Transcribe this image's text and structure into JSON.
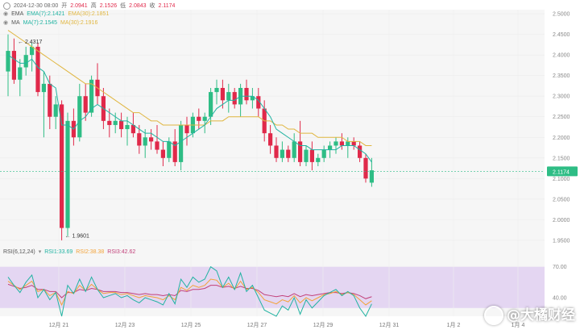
{
  "header": {
    "datetime": "2024-12-30 08:00",
    "open_label": "开",
    "open": "2.0941",
    "high_label": "高",
    "high": "2.1526",
    "low_label": "低",
    "low": "2.0843",
    "close_label": "收",
    "close": "2.1174"
  },
  "ema_legend": {
    "name": "EMA",
    "items": [
      "EMA(7):2.1421",
      "EMA(30):2.1851"
    ]
  },
  "ma_legend": {
    "name": "MA",
    "items": [
      "MA(7):2.1545",
      "MA(30):2.1916"
    ]
  },
  "rsi_legend": {
    "name": "RSI(6,12,24)",
    "items": [
      "RSI1:33.69",
      "RSI2:38.38",
      "RSI3:42.62"
    ]
  },
  "price_axis": [
    "2.5000",
    "2.4500",
    "2.4000",
    "2.3500",
    "2.3000",
    "2.2500",
    "2.2000",
    "2.1500",
    "2.1000",
    "2.0500",
    "2.0000",
    "1.9500"
  ],
  "current_price_tag": "2.1174",
  "rsi_axis": [
    "70.00",
    "40.00"
  ],
  "x_axis": [
    "12月 21",
    "12月 23",
    "12月 25",
    "12月 27",
    "12月 29",
    "12月 31",
    "1月 2",
    "1月 4"
  ],
  "annotations": {
    "high_marker": "2.4317",
    "low_marker": "1.9601"
  },
  "watermark": "@大橘财经",
  "colors": {
    "up": "#2ebd85",
    "down": "#e0294a",
    "ema7": "#21b3a2",
    "ema30": "#e0b640",
    "rsi1": "#21b3a2",
    "rsi2": "#f2a33a",
    "rsi3": "#c2417a",
    "rsi_band": "#e4d6f2",
    "price_tag": "#2ebd85"
  },
  "chart_data": {
    "type": "candlestick",
    "candles": [
      [
        2.36,
        2.45,
        2.3,
        2.41
      ],
      [
        2.41,
        2.44,
        2.33,
        2.34
      ],
      [
        2.34,
        2.39,
        2.3,
        2.37
      ],
      [
        2.37,
        2.42,
        2.35,
        2.4
      ],
      [
        2.4,
        2.43,
        2.36,
        2.42
      ],
      [
        2.42,
        2.43,
        2.3,
        2.31
      ],
      [
        2.31,
        2.36,
        2.2,
        2.33
      ],
      [
        2.33,
        2.35,
        2.22,
        2.25
      ],
      [
        2.25,
        2.3,
        2.22,
        2.28
      ],
      [
        2.28,
        2.29,
        1.95,
        1.98
      ],
      [
        1.98,
        2.26,
        1.96,
        2.24
      ],
      [
        2.24,
        2.27,
        2.18,
        2.2
      ],
      [
        2.2,
        2.33,
        2.19,
        2.3
      ],
      [
        2.3,
        2.33,
        2.24,
        2.26
      ],
      [
        2.26,
        2.35,
        2.25,
        2.34
      ],
      [
        2.34,
        2.38,
        2.28,
        2.3
      ],
      [
        2.3,
        2.32,
        2.22,
        2.24
      ],
      [
        2.24,
        2.27,
        2.2,
        2.23
      ],
      [
        2.23,
        2.26,
        2.21,
        2.24
      ],
      [
        2.24,
        2.26,
        2.2,
        2.22
      ],
      [
        2.22,
        2.25,
        2.18,
        2.23
      ],
      [
        2.23,
        2.26,
        2.2,
        2.21
      ],
      [
        2.21,
        2.23,
        2.16,
        2.18
      ],
      [
        2.18,
        2.22,
        2.15,
        2.2
      ],
      [
        2.2,
        2.22,
        2.17,
        2.19
      ],
      [
        2.19,
        2.23,
        2.16,
        2.17
      ],
      [
        2.17,
        2.19,
        2.13,
        2.15
      ],
      [
        2.15,
        2.2,
        2.14,
        2.19
      ],
      [
        2.19,
        2.22,
        2.13,
        2.14
      ],
      [
        2.14,
        2.24,
        2.12,
        2.23
      ],
      [
        2.23,
        2.25,
        2.18,
        2.21
      ],
      [
        2.21,
        2.26,
        2.2,
        2.25
      ],
      [
        2.25,
        2.27,
        2.22,
        2.24
      ],
      [
        2.24,
        2.26,
        2.21,
        2.25
      ],
      [
        2.25,
        2.32,
        2.23,
        2.31
      ],
      [
        2.31,
        2.34,
        2.28,
        2.32
      ],
      [
        2.32,
        2.34,
        2.27,
        2.29
      ],
      [
        2.29,
        2.33,
        2.26,
        2.31
      ],
      [
        2.31,
        2.32,
        2.27,
        2.28
      ],
      [
        2.28,
        2.33,
        2.25,
        2.32
      ],
      [
        2.32,
        2.34,
        2.28,
        2.29
      ],
      [
        2.29,
        2.32,
        2.27,
        2.3
      ],
      [
        2.3,
        2.32,
        2.25,
        2.27
      ],
      [
        2.27,
        2.29,
        2.19,
        2.21
      ],
      [
        2.21,
        2.23,
        2.16,
        2.18
      ],
      [
        2.18,
        2.2,
        2.14,
        2.15
      ],
      [
        2.15,
        2.19,
        2.14,
        2.17
      ],
      [
        2.17,
        2.18,
        2.14,
        2.15
      ],
      [
        2.15,
        2.21,
        2.14,
        2.19
      ],
      [
        2.19,
        2.24,
        2.13,
        2.14
      ],
      [
        2.14,
        2.18,
        2.13,
        2.17
      ],
      [
        2.17,
        2.19,
        2.12,
        2.14
      ],
      [
        2.14,
        2.16,
        2.13,
        2.15
      ],
      [
        2.15,
        2.18,
        2.14,
        2.17
      ],
      [
        2.17,
        2.19,
        2.15,
        2.18
      ],
      [
        2.18,
        2.2,
        2.16,
        2.19
      ],
      [
        2.19,
        2.21,
        2.17,
        2.18
      ],
      [
        2.18,
        2.2,
        2.15,
        2.19
      ],
      [
        2.19,
        2.2,
        2.17,
        2.18
      ],
      [
        2.18,
        2.19,
        2.14,
        2.15
      ],
      [
        2.15,
        2.16,
        2.09,
        2.1
      ],
      [
        2.09,
        2.15,
        2.08,
        2.12
      ]
    ],
    "ema7": [
      2.4,
      2.39,
      2.38,
      2.38,
      2.39,
      2.37,
      2.36,
      2.33,
      2.32,
      2.23,
      2.23,
      2.22,
      2.24,
      2.25,
      2.27,
      2.28,
      2.27,
      2.26,
      2.25,
      2.24,
      2.24,
      2.23,
      2.22,
      2.21,
      2.21,
      2.2,
      2.19,
      2.19,
      2.18,
      2.19,
      2.2,
      2.21,
      2.22,
      2.23,
      2.25,
      2.27,
      2.28,
      2.29,
      2.29,
      2.3,
      2.3,
      2.3,
      2.29,
      2.27,
      2.25,
      2.22,
      2.21,
      2.2,
      2.19,
      2.18,
      2.18,
      2.17,
      2.17,
      2.17,
      2.17,
      2.17,
      2.18,
      2.18,
      2.18,
      2.17,
      2.16,
      2.14
    ],
    "ema30": [
      2.46,
      2.45,
      2.44,
      2.43,
      2.42,
      2.41,
      2.4,
      2.39,
      2.38,
      2.37,
      2.36,
      2.35,
      2.34,
      2.33,
      2.33,
      2.32,
      2.31,
      2.3,
      2.29,
      2.28,
      2.27,
      2.26,
      2.26,
      2.25,
      2.24,
      2.24,
      2.23,
      2.23,
      2.23,
      2.23,
      2.23,
      2.23,
      2.23,
      2.23,
      2.24,
      2.24,
      2.24,
      2.25,
      2.25,
      2.25,
      2.25,
      2.25,
      2.25,
      2.24,
      2.24,
      2.23,
      2.23,
      2.22,
      2.22,
      2.21,
      2.21,
      2.21,
      2.2,
      2.2,
      2.2,
      2.2,
      2.2,
      2.19,
      2.19,
      2.19,
      2.18,
      2.18
    ],
    "rsi1": [
      60,
      52,
      45,
      55,
      62,
      40,
      48,
      38,
      45,
      22,
      52,
      44,
      58,
      46,
      60,
      48,
      40,
      42,
      44,
      40,
      42,
      38,
      35,
      40,
      38,
      36,
      33,
      44,
      34,
      58,
      50,
      60,
      55,
      58,
      70,
      66,
      50,
      60,
      48,
      64,
      46,
      52,
      40,
      28,
      25,
      22,
      32,
      28,
      40,
      24,
      38,
      30,
      36,
      42,
      45,
      48,
      42,
      46,
      42,
      30,
      22,
      34
    ],
    "rsi2": [
      56,
      52,
      48,
      52,
      56,
      46,
      48,
      42,
      45,
      33,
      46,
      44,
      52,
      47,
      53,
      48,
      44,
      45,
      45,
      43,
      44,
      42,
      40,
      42,
      41,
      40,
      38,
      42,
      38,
      50,
      47,
      52,
      50,
      52,
      58,
      57,
      50,
      54,
      48,
      56,
      48,
      50,
      45,
      38,
      36,
      34,
      38,
      36,
      42,
      35,
      40,
      37,
      40,
      43,
      44,
      46,
      43,
      45,
      43,
      38,
      33,
      37
    ],
    "rsi3": [
      53,
      51,
      49,
      50,
      52,
      48,
      48,
      46,
      46,
      40,
      45,
      45,
      48,
      47,
      49,
      48,
      46,
      46,
      46,
      45,
      45,
      44,
      43,
      44,
      43,
      43,
      42,
      43,
      42,
      47,
      46,
      48,
      48,
      49,
      52,
      52,
      50,
      51,
      49,
      51,
      49,
      49,
      47,
      43,
      42,
      41,
      42,
      41,
      44,
      41,
      43,
      42,
      43,
      44,
      45,
      45,
      44,
      45,
      44,
      42,
      39,
      41
    ]
  }
}
